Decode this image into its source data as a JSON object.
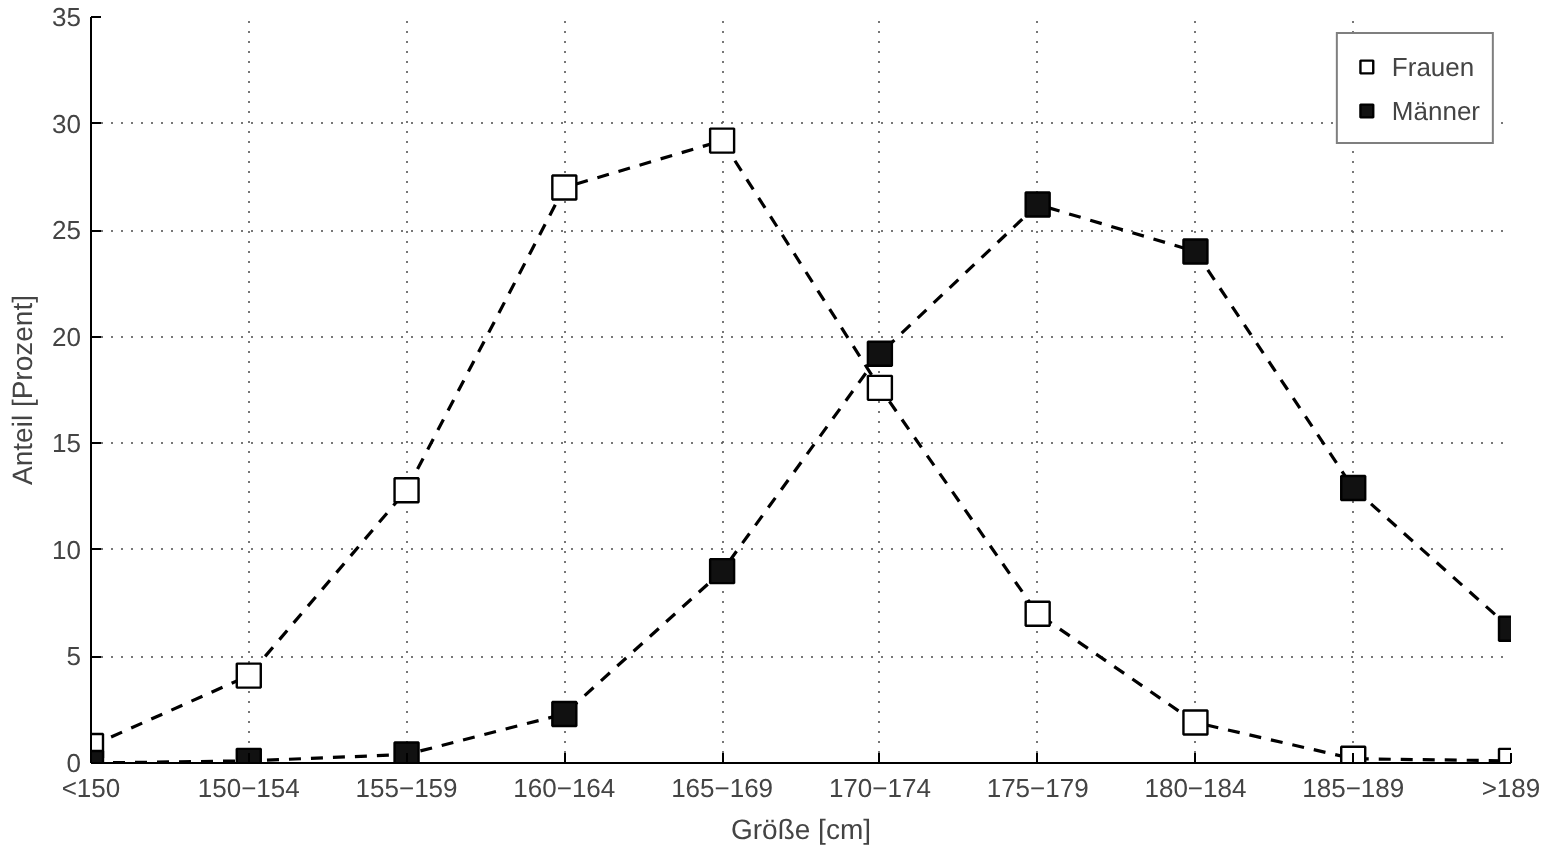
{
  "chart_data": {
    "type": "line",
    "xlabel": "Größe [cm]",
    "ylabel": "Anteil [Prozent]",
    "categories": [
      "<150",
      "150−154",
      "155−159",
      "160−164",
      "165−169",
      "170−174",
      "175−179",
      "180−184",
      "185−189",
      ">189"
    ],
    "ylim": [
      0,
      35
    ],
    "yticks": [
      0,
      5,
      10,
      15,
      20,
      25,
      30,
      35
    ],
    "grid": true,
    "legend": "top right",
    "marker": "square",
    "line_style": "dashed",
    "series": [
      {
        "name": "Frauen",
        "color": "#ffffff",
        "values": [
          0.8,
          4.1,
          12.8,
          27.0,
          29.2,
          17.6,
          7.0,
          1.9,
          0.2,
          0.1
        ]
      },
      {
        "name": "Männer",
        "color": "#111111",
        "values": [
          0.0,
          0.1,
          0.4,
          2.3,
          9.0,
          19.2,
          26.2,
          24.0,
          12.9,
          6.3
        ]
      }
    ]
  }
}
